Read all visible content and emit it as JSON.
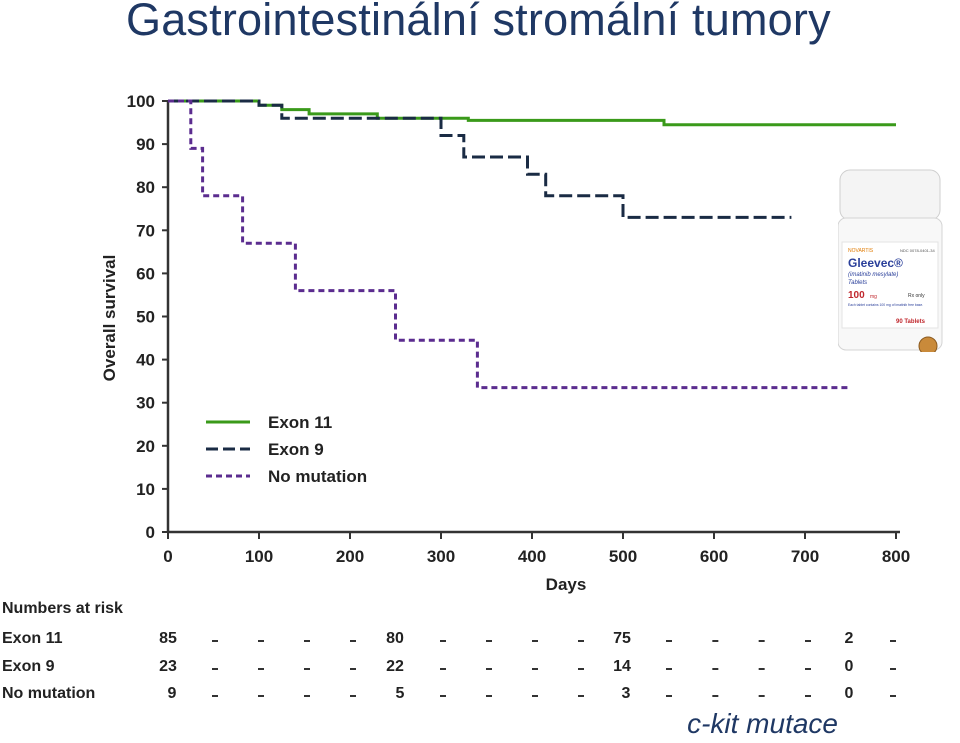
{
  "slide": {
    "title": "Gastrointestinální stromální tumory",
    "footer_note": "c-kit mutace"
  },
  "chart_data": {
    "type": "line",
    "subtype": "kaplan-meier step",
    "xlabel": "Days",
    "ylabel": "Overall survival",
    "xlim": [
      0,
      800
    ],
    "ylim": [
      0,
      100
    ],
    "x_ticks": [
      0,
      100,
      200,
      300,
      400,
      500,
      600,
      700,
      800
    ],
    "y_ticks": [
      0,
      10,
      20,
      30,
      40,
      50,
      60,
      70,
      80,
      90,
      100
    ],
    "grid": false,
    "legend_position": "lower-left",
    "series": [
      {
        "name": "Exon 11",
        "color": "#3a9a1a",
        "style": "solid",
        "points": [
          [
            0,
            100
          ],
          [
            100,
            100
          ],
          [
            100,
            99
          ],
          [
            125,
            99
          ],
          [
            125,
            98
          ],
          [
            155,
            98
          ],
          [
            155,
            97
          ],
          [
            230,
            97
          ],
          [
            230,
            96
          ],
          [
            330,
            96
          ],
          [
            330,
            95.5
          ],
          [
            545,
            95.5
          ],
          [
            545,
            94.5
          ],
          [
            800,
            94.5
          ]
        ]
      },
      {
        "name": "Exon 9",
        "color": "#1a2b44",
        "style": "dashed",
        "points": [
          [
            0,
            100
          ],
          [
            100,
            100
          ],
          [
            100,
            99
          ],
          [
            125,
            99
          ],
          [
            125,
            96
          ],
          [
            300,
            96
          ],
          [
            300,
            92
          ],
          [
            325,
            92
          ],
          [
            325,
            87
          ],
          [
            395,
            87
          ],
          [
            395,
            83
          ],
          [
            415,
            83
          ],
          [
            415,
            78
          ],
          [
            500,
            78
          ],
          [
            500,
            73
          ],
          [
            685,
            73
          ]
        ]
      },
      {
        "name": "No mutation",
        "color": "#5b2c8f",
        "style": "dotted-dash",
        "points": [
          [
            0,
            100
          ],
          [
            25,
            100
          ],
          [
            25,
            89
          ],
          [
            38,
            89
          ],
          [
            38,
            78
          ],
          [
            82,
            78
          ],
          [
            82,
            67
          ],
          [
            140,
            67
          ],
          [
            140,
            56
          ],
          [
            250,
            56
          ],
          [
            250,
            44.5
          ],
          [
            340,
            44.5
          ],
          [
            340,
            33.5
          ],
          [
            750,
            33.5
          ]
        ]
      }
    ],
    "numbers_at_risk": {
      "title": "Numbers at risk",
      "at_days": [
        0,
        250,
        500,
        750
      ],
      "rows": [
        {
          "label": "Exon 11",
          "values": [
            "85",
            "80",
            "75",
            "2"
          ]
        },
        {
          "label": "Exon 9",
          "values": [
            "23",
            "22",
            "14",
            "0"
          ]
        },
        {
          "label": "No mutation",
          "values": [
            "9",
            "5",
            "3",
            "0"
          ]
        }
      ]
    }
  },
  "product_image": {
    "brand": "NOVARTIS",
    "ndc": "NDC 0078-0401-34",
    "name": "Gleevec®",
    "generic": "(imatinib mesylate)",
    "form": "Tablets",
    "strength": "100",
    "unit": "mg",
    "rx": "Rx only",
    "note": "Each tablet contains 100 mg of imatinib free base.",
    "count": "90 Tablets"
  }
}
